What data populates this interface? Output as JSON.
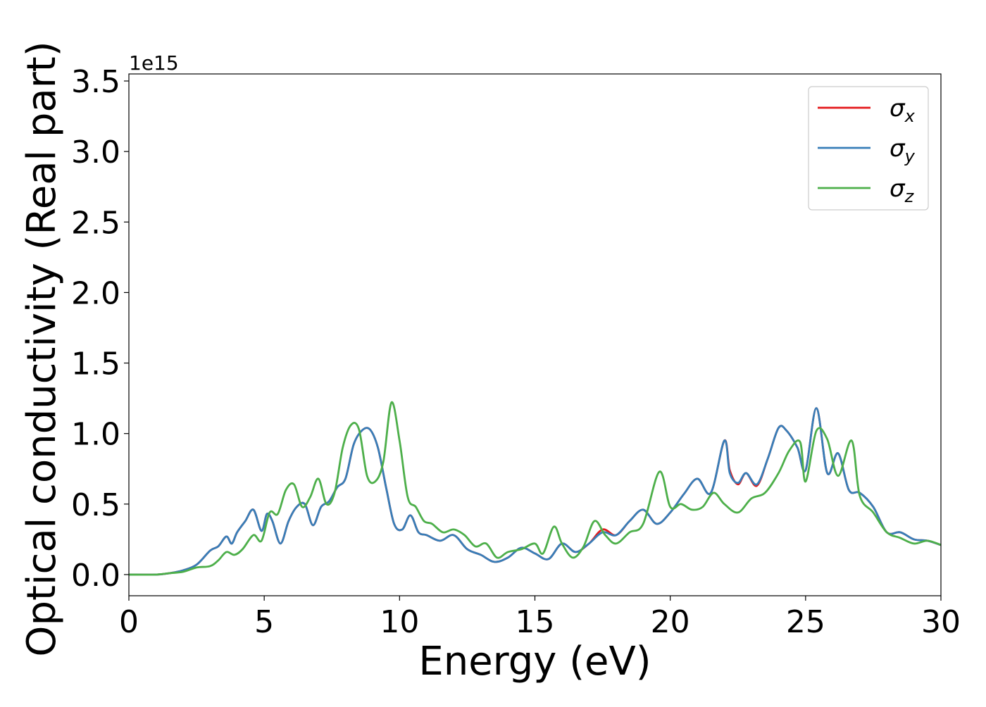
{
  "chart_data": {
    "type": "line",
    "xlabel": "Energy (eV)",
    "ylabel": "Optical conductivity (Real part)",
    "offset_text": "1e15",
    "xlim": [
      0,
      30
    ],
    "ylim": [
      -0.15,
      3.55
    ],
    "xticks": [
      "0",
      "5",
      "10",
      "15",
      "20",
      "25",
      "30"
    ],
    "yticks": [
      "0.0",
      "0.5",
      "1.0",
      "1.5",
      "2.0",
      "2.5",
      "3.0",
      "3.5"
    ],
    "grid": false,
    "legend_position": "top-right",
    "series": [
      {
        "name": "σx",
        "legend_symbol": "σ",
        "legend_subscript": "x",
        "color": "#e41a1c",
        "x": [
          0,
          1,
          1.5,
          2,
          2.5,
          3,
          3.3,
          3.6,
          3.8,
          4,
          4.3,
          4.6,
          4.9,
          5.1,
          5.3,
          5.6,
          5.9,
          6.2,
          6.5,
          6.8,
          7.1,
          7.4,
          7.7,
          8,
          8.3,
          8.6,
          8.9,
          9.2,
          9.5,
          9.8,
          10.1,
          10.4,
          10.7,
          11,
          11.5,
          12,
          12.5,
          13,
          13.5,
          14,
          14.5,
          15,
          15.5,
          16,
          16.5,
          17,
          17.5,
          18,
          18.5,
          19,
          19.5,
          20,
          20.5,
          21,
          21.5,
          22,
          22.2,
          22.5,
          22.8,
          23.2,
          23.6,
          24,
          24.3,
          24.7,
          25,
          25.4,
          25.8,
          26.2,
          26.6,
          27,
          27.5,
          28,
          28.5,
          29,
          29.5,
          30
        ],
        "y": [
          0,
          0,
          0.01,
          0.03,
          0.07,
          0.17,
          0.2,
          0.27,
          0.22,
          0.3,
          0.38,
          0.46,
          0.31,
          0.43,
          0.38,
          0.22,
          0.38,
          0.48,
          0.5,
          0.35,
          0.48,
          0.52,
          0.62,
          0.68,
          0.92,
          1.02,
          1.03,
          0.9,
          0.62,
          0.36,
          0.32,
          0.42,
          0.3,
          0.28,
          0.24,
          0.28,
          0.18,
          0.14,
          0.09,
          0.12,
          0.19,
          0.15,
          0.11,
          0.22,
          0.16,
          0.22,
          0.32,
          0.28,
          0.38,
          0.46,
          0.36,
          0.44,
          0.57,
          0.68,
          0.58,
          0.95,
          0.74,
          0.64,
          0.72,
          0.63,
          0.82,
          1.04,
          1.02,
          0.9,
          0.74,
          1.18,
          0.72,
          0.86,
          0.6,
          0.58,
          0.48,
          0.3,
          0.3,
          0.25,
          0.24,
          0.21
        ]
      },
      {
        "name": "σy",
        "legend_symbol": "σ",
        "legend_subscript": "y",
        "color": "#377eb8",
        "x": [
          0,
          1,
          1.5,
          2,
          2.5,
          3,
          3.3,
          3.6,
          3.8,
          4,
          4.3,
          4.6,
          4.9,
          5.1,
          5.3,
          5.6,
          5.9,
          6.2,
          6.5,
          6.8,
          7.1,
          7.4,
          7.7,
          8,
          8.3,
          8.6,
          8.9,
          9.2,
          9.5,
          9.8,
          10.1,
          10.4,
          10.7,
          11,
          11.5,
          12,
          12.5,
          13,
          13.5,
          14,
          14.5,
          15,
          15.5,
          16,
          16.5,
          17,
          17.5,
          18,
          18.5,
          19,
          19.5,
          20,
          20.5,
          21,
          21.5,
          22,
          22.2,
          22.5,
          22.8,
          23.2,
          23.6,
          24,
          24.3,
          24.7,
          25,
          25.4,
          25.8,
          26.2,
          26.6,
          27,
          27.5,
          28,
          28.5,
          29,
          29.5,
          30
        ],
        "y": [
          0,
          0,
          0.01,
          0.03,
          0.07,
          0.17,
          0.2,
          0.27,
          0.22,
          0.3,
          0.38,
          0.46,
          0.31,
          0.43,
          0.38,
          0.22,
          0.38,
          0.48,
          0.5,
          0.35,
          0.48,
          0.52,
          0.62,
          0.68,
          0.92,
          1.02,
          1.03,
          0.9,
          0.62,
          0.36,
          0.32,
          0.42,
          0.3,
          0.28,
          0.24,
          0.28,
          0.18,
          0.14,
          0.09,
          0.12,
          0.19,
          0.15,
          0.11,
          0.22,
          0.16,
          0.22,
          0.3,
          0.28,
          0.38,
          0.46,
          0.36,
          0.44,
          0.57,
          0.68,
          0.58,
          0.95,
          0.72,
          0.65,
          0.72,
          0.64,
          0.82,
          1.04,
          1.02,
          0.9,
          0.74,
          1.18,
          0.72,
          0.86,
          0.6,
          0.58,
          0.48,
          0.3,
          0.3,
          0.25,
          0.24,
          0.21
        ]
      },
      {
        "name": "σz",
        "legend_symbol": "σ",
        "legend_subscript": "z",
        "color": "#4daf4a",
        "x": [
          0,
          1,
          1.5,
          2,
          2.5,
          3,
          3.3,
          3.6,
          3.9,
          4.2,
          4.6,
          4.9,
          5.2,
          5.5,
          5.8,
          6.1,
          6.4,
          6.7,
          7,
          7.3,
          7.6,
          7.9,
          8.2,
          8.5,
          8.8,
          9.1,
          9.4,
          9.7,
          10,
          10.3,
          10.6,
          10.9,
          11.2,
          11.6,
          12,
          12.4,
          12.8,
          13.2,
          13.6,
          14,
          14.5,
          15,
          15.3,
          15.7,
          16,
          16.4,
          16.8,
          17.2,
          17.6,
          18,
          18.5,
          19,
          19.6,
          20,
          20.4,
          20.8,
          21.2,
          21.6,
          22,
          22.5,
          23,
          23.5,
          24,
          24.4,
          24.8,
          25,
          25.4,
          25.8,
          26.2,
          26.7,
          27,
          27.5,
          28,
          28.5,
          29,
          29.5,
          30
        ],
        "y": [
          0,
          0,
          0.01,
          0.02,
          0.05,
          0.06,
          0.1,
          0.16,
          0.14,
          0.18,
          0.28,
          0.24,
          0.44,
          0.43,
          0.6,
          0.64,
          0.48,
          0.55,
          0.68,
          0.5,
          0.58,
          0.9,
          1.06,
          1.03,
          0.7,
          0.66,
          0.8,
          1.22,
          0.95,
          0.55,
          0.48,
          0.38,
          0.36,
          0.3,
          0.32,
          0.28,
          0.2,
          0.22,
          0.12,
          0.16,
          0.18,
          0.22,
          0.15,
          0.34,
          0.22,
          0.12,
          0.2,
          0.38,
          0.28,
          0.22,
          0.3,
          0.36,
          0.73,
          0.48,
          0.5,
          0.46,
          0.48,
          0.58,
          0.5,
          0.44,
          0.54,
          0.58,
          0.72,
          0.88,
          0.94,
          0.66,
          1.02,
          0.96,
          0.7,
          0.95,
          0.56,
          0.44,
          0.3,
          0.26,
          0.22,
          0.24,
          0.21
        ]
      }
    ]
  }
}
